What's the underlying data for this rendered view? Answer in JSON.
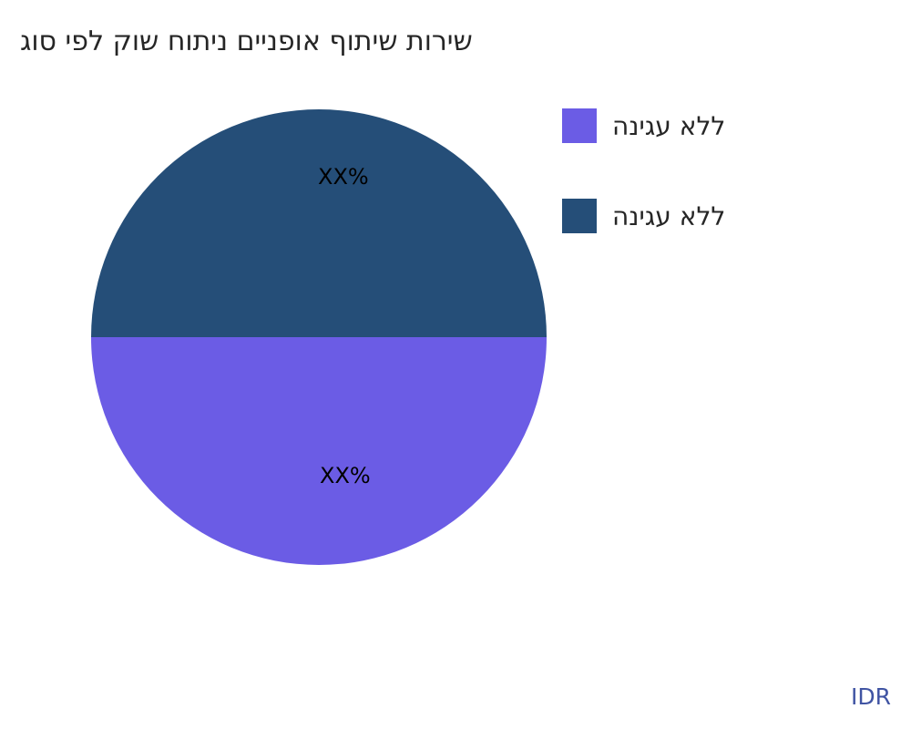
{
  "chart_data": {
    "type": "pie",
    "title": "שירות שיתוף אופניים ניתוח שוק לפי סוג",
    "slices": [
      {
        "label": "ללא עגינה",
        "value": 50,
        "display": "XX%",
        "color": "#6b5ce5"
      },
      {
        "label": "ללא עגינה",
        "value": 50,
        "display": "XX%",
        "color": "#254e78"
      }
    ],
    "legend_position": "right",
    "background": "#ffffff",
    "watermark": "IDR"
  }
}
